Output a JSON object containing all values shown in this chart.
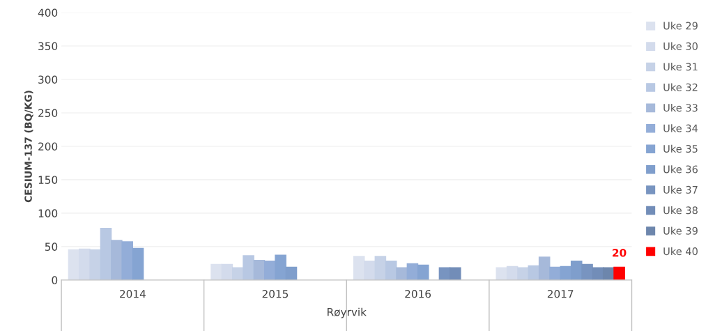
{
  "chart_data": {
    "type": "bar",
    "ylabel": "CESIUM-137 (BQ/KG)",
    "xlabel": "Røyrvik",
    "categories": [
      "2014",
      "2015",
      "2016",
      "2017"
    ],
    "ylim": [
      0,
      400
    ],
    "yticks": [
      0,
      50,
      100,
      150,
      200,
      250,
      300,
      350,
      400
    ],
    "grid": "y",
    "legend": "right",
    "series": [
      {
        "name": "Uke 29",
        "color": "#dce2ef",
        "values": [
          46,
          24,
          36,
          19
        ]
      },
      {
        "name": "Uke 30",
        "color": "#d3dbec",
        "values": [
          47,
          24,
          29,
          21
        ]
      },
      {
        "name": "Uke 31",
        "color": "#c6d2e7",
        "values": [
          46,
          19,
          36,
          19
        ]
      },
      {
        "name": "Uke 32",
        "color": "#b8c8e3",
        "values": [
          78,
          37,
          29,
          22
        ]
      },
      {
        "name": "Uke 33",
        "color": "#a6b9da",
        "values": [
          60,
          30,
          19,
          35
        ]
      },
      {
        "name": "Uke 34",
        "color": "#93add8",
        "values": [
          58,
          29,
          25,
          20
        ]
      },
      {
        "name": "Uke 35",
        "color": "#85a4d2",
        "values": [
          48,
          38,
          23,
          21
        ]
      },
      {
        "name": "Uke 36",
        "color": "#7f9ecc",
        "values": [
          null,
          20,
          null,
          29
        ]
      },
      {
        "name": "Uke 37",
        "color": "#7894c0",
        "values": [
          null,
          null,
          19,
          24
        ]
      },
      {
        "name": "Uke 38",
        "color": "#728db8",
        "values": [
          null,
          null,
          19,
          19
        ]
      },
      {
        "name": "Uke 39",
        "color": "#6d86ac",
        "values": [
          null,
          null,
          null,
          19
        ]
      },
      {
        "name": "Uke 40",
        "color": "#ff0000",
        "values": [
          null,
          null,
          null,
          20
        ],
        "value_labels": [
          null,
          null,
          null,
          "20"
        ]
      }
    ]
  }
}
